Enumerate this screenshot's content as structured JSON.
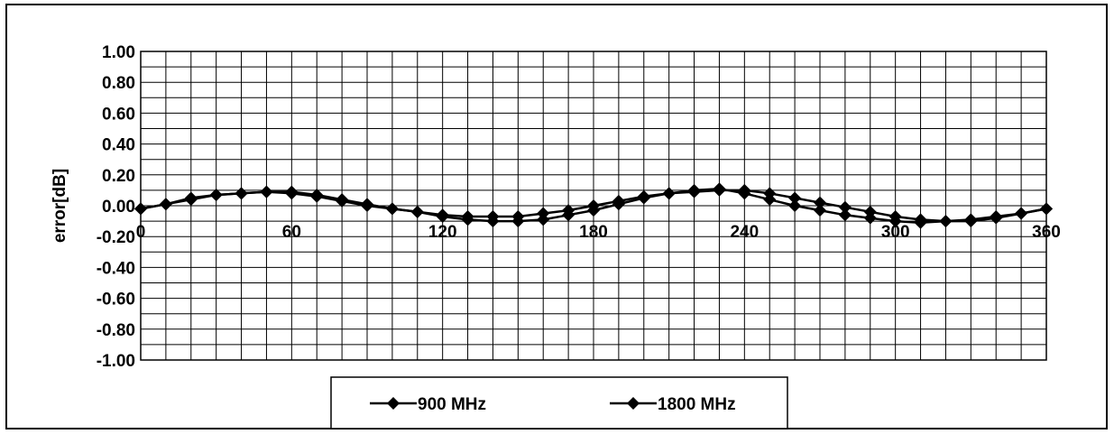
{
  "chart_data": {
    "type": "line",
    "title": "",
    "xlabel": "",
    "ylabel": "error[dB]",
    "xlim": [
      0,
      360
    ],
    "ylim": [
      -1.0,
      1.0
    ],
    "x_ticks": [
      "0",
      "60",
      "120",
      "180",
      "240",
      "300",
      "360"
    ],
    "y_ticks": [
      "1.00",
      "0.80",
      "0.60",
      "0.40",
      "0.20",
      "0.00",
      "-0.20",
      "-0.40",
      "-0.60",
      "-0.80",
      "-1.00"
    ],
    "grid": true,
    "legend_position": "bottom",
    "x": [
      0,
      10,
      20,
      30,
      40,
      50,
      60,
      70,
      80,
      90,
      100,
      110,
      120,
      130,
      140,
      150,
      160,
      170,
      180,
      190,
      200,
      210,
      220,
      230,
      240,
      250,
      260,
      270,
      280,
      290,
      300,
      310,
      320,
      330,
      340,
      350,
      360
    ],
    "series": [
      {
        "name": "900 MHz",
        "values": [
          -0.02,
          0.01,
          0.05,
          0.07,
          0.08,
          0.09,
          0.09,
          0.07,
          0.04,
          0.01,
          -0.02,
          -0.04,
          -0.06,
          -0.07,
          -0.07,
          -0.07,
          -0.05,
          -0.03,
          0.0,
          0.03,
          0.06,
          0.08,
          0.09,
          0.1,
          0.1,
          0.08,
          0.05,
          0.02,
          -0.01,
          -0.04,
          -0.07,
          -0.09,
          -0.1,
          -0.09,
          -0.07,
          -0.05,
          -0.02
        ]
      },
      {
        "name": "1800 MHz",
        "values": [
          -0.02,
          0.01,
          0.04,
          0.07,
          0.08,
          0.09,
          0.08,
          0.06,
          0.03,
          0.0,
          -0.02,
          -0.04,
          -0.07,
          -0.09,
          -0.1,
          -0.1,
          -0.09,
          -0.06,
          -0.03,
          0.01,
          0.05,
          0.08,
          0.1,
          0.11,
          0.08,
          0.04,
          0.0,
          -0.03,
          -0.06,
          -0.08,
          -0.1,
          -0.11,
          -0.1,
          -0.1,
          -0.08,
          -0.05,
          -0.02
        ]
      }
    ],
    "colors": {
      "line": "#000000",
      "grid": "#000000",
      "background": "#ffffff"
    }
  }
}
